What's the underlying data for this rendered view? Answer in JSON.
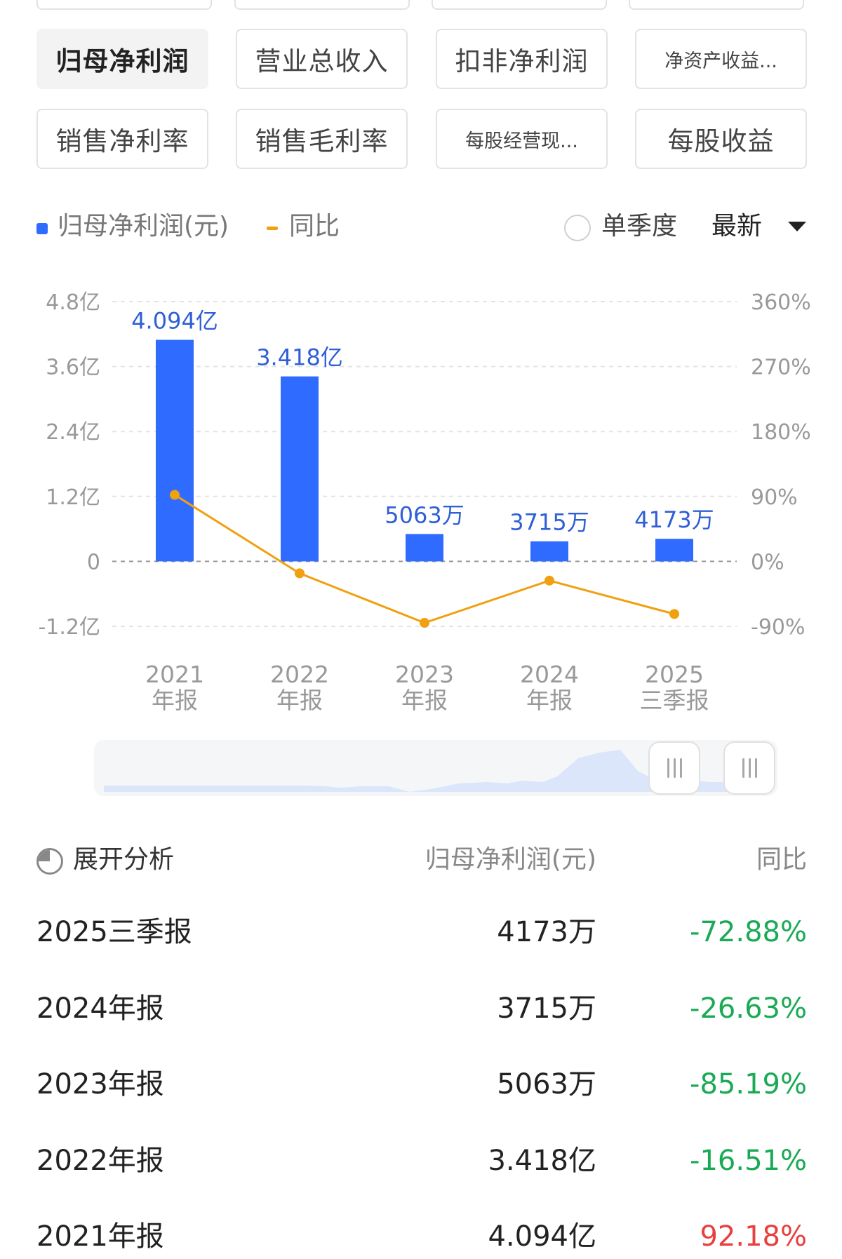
{
  "tabs_row1": [
    {
      "label": "归母净利润",
      "active": true
    },
    {
      "label": "营业总收入",
      "active": false
    },
    {
      "label": "扣非净利润",
      "active": false
    },
    {
      "label": "净资产收益...",
      "active": false
    }
  ],
  "tabs_row2": [
    {
      "label": "销售净利率",
      "active": false
    },
    {
      "label": "销售毛利率",
      "active": false
    },
    {
      "label": "每股经营现...",
      "active": false
    },
    {
      "label": "每股收益",
      "active": false
    }
  ],
  "legend": {
    "series_label": "归母净利润(元)",
    "line_label": "同比",
    "quarter_toggle_label": "单季度",
    "sort_label": "最新"
  },
  "colors": {
    "bar": "#2f6bff",
    "line": "#f0a010",
    "negative": "#1aaa55",
    "positive": "#e84040"
  },
  "chart_data": {
    "type": "bar",
    "categories": [
      [
        "2021",
        "年报"
      ],
      [
        "2022",
        "年报"
      ],
      [
        "2023",
        "年报"
      ],
      [
        "2024",
        "年报"
      ],
      [
        "2025",
        "三季报"
      ]
    ],
    "series": [
      {
        "name": "归母净利润(元)",
        "type": "bar",
        "values": [
          4.094,
          3.418,
          0.5063,
          0.3715,
          0.4173
        ],
        "labels": [
          "4.094亿",
          "3.418亿",
          "5063万",
          "3715万",
          "4173万"
        ]
      },
      {
        "name": "同比",
        "type": "line",
        "values": [
          92.18,
          -16.51,
          -85.19,
          -26.63,
          -72.88
        ]
      }
    ],
    "y_left": {
      "ticks": [
        4.8,
        3.6,
        2.4,
        1.2,
        0,
        -1.2
      ],
      "labels": [
        "4.8亿",
        "3.6亿",
        "2.4亿",
        "1.2亿",
        "0",
        "-1.2亿"
      ],
      "ylim": [
        -1.2,
        4.8
      ]
    },
    "y_right": {
      "ticks": [
        360,
        270,
        180,
        90,
        0,
        -90
      ],
      "labels": [
        "360%",
        "270%",
        "180%",
        "90%",
        "0%",
        "-90%"
      ],
      "ylim": [
        -90,
        360
      ]
    },
    "grid": true
  },
  "table": {
    "header": {
      "expand_label": "展开分析",
      "value_label": "归母净利润(元)",
      "yoy_label": "同比"
    },
    "rows": [
      {
        "period": "2025三季报",
        "value": "4173万",
        "yoy": "-72.88%",
        "sign": "neg"
      },
      {
        "period": "2024年报",
        "value": "3715万",
        "yoy": "-26.63%",
        "sign": "neg"
      },
      {
        "period": "2023年报",
        "value": "5063万",
        "yoy": "-85.19%",
        "sign": "neg"
      },
      {
        "period": "2022年报",
        "value": "3.418亿",
        "yoy": "-16.51%",
        "sign": "neg"
      },
      {
        "period": "2021年报",
        "value": "4.094亿",
        "yoy": "92.18%",
        "sign": "pos"
      }
    ]
  }
}
